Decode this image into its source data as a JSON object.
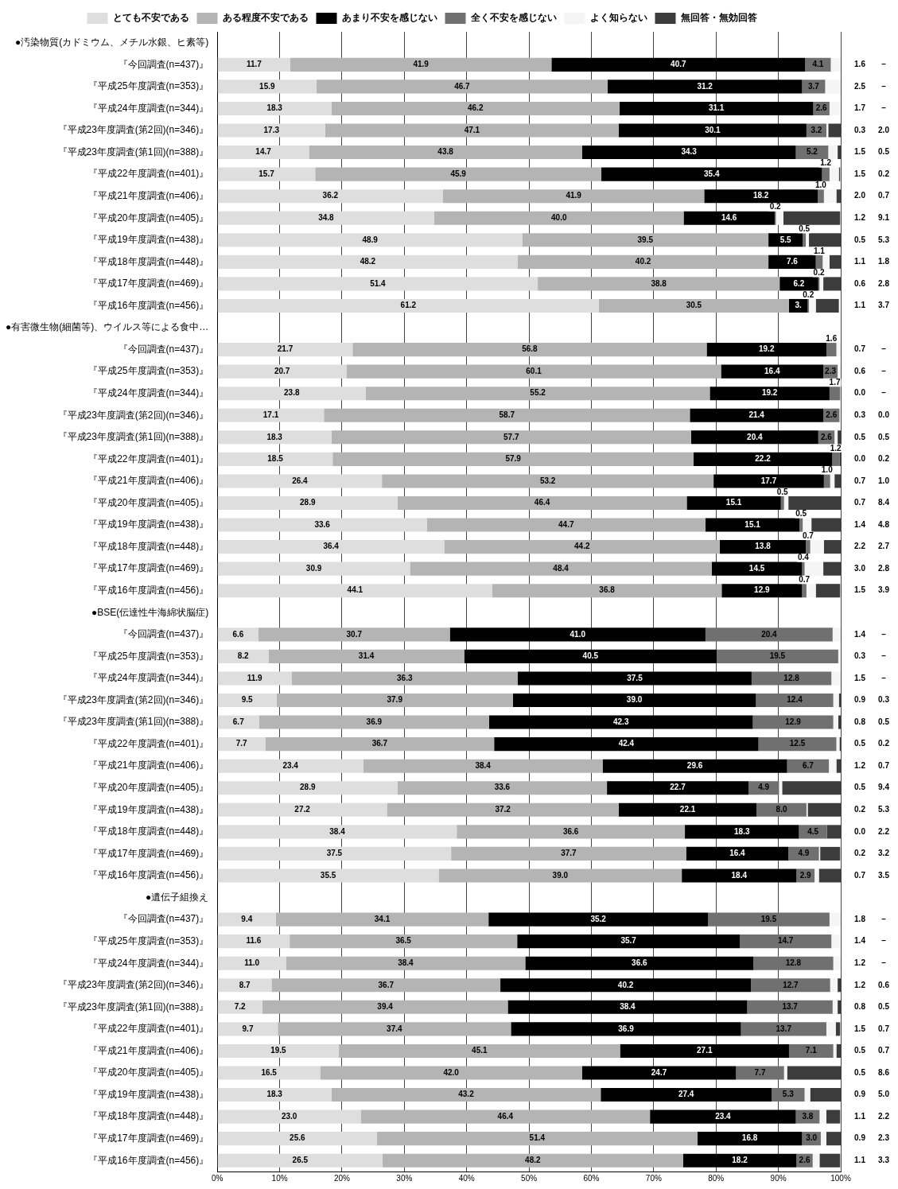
{
  "chart_data": {
    "type": "bar",
    "orientation": "horizontal",
    "stacked": true,
    "categories": [
      "●汚染物質(カドミウム、メチル水銀、ヒ素等)",
      "『今回調査(n=437)』",
      "『平成25年度調査(n=353)』",
      "『平成24年度調査(n=344)』",
      "『平成23年度調査(第2回)(n=346)』",
      "『平成23年度調査(第1回)(n=388)』",
      "『平成22年度調査(n=401)』",
      "『平成21年度調査(n=406)』",
      "『平成20年度調査(n=405)』",
      "『平成19年度調査(n=438)』",
      "『平成18年度調査(n=448)』",
      "『平成17年度調査(n=469)』",
      "『平成16年度調査(n=456)』",
      "●有害微生物(細菌等)、ウイルス等による食中…",
      "『今回調査(n=437)』",
      "『平成25年度調査(n=353)』",
      "『平成24年度調査(n=344)』",
      "『平成23年度調査(第2回)(n=346)』",
      "『平成23年度調査(第1回)(n=388)』",
      "『平成22年度調査(n=401)』",
      "『平成21年度調査(n=406)』",
      "『平成20年度調査(n=405)』",
      "『平成19年度調査(n=438)』",
      "『平成18年度調査(n=448)』",
      "『平成17年度調査(n=469)』",
      "『平成16年度調査(n=456)』",
      "●BSE(伝達性牛海綿状脳症)",
      "『今回調査(n=437)』",
      "『平成25年度調査(n=353)』",
      "『平成24年度調査(n=344)』",
      "『平成23年度調査(第2回)(n=346)』",
      "『平成23年度調査(第1回)(n=388)』",
      "『平成22年度調査(n=401)』",
      "『平成21年度調査(n=406)』",
      "『平成20年度調査(n=405)』",
      "『平成19年度調査(n=438)』",
      "『平成18年度調査(n=448)』",
      "『平成17年度調査(n=469)』",
      "『平成16年度調査(n=456)』",
      "●遺伝子組換え",
      "『今回調査(n=437)』",
      "『平成25年度調査(n=353)』",
      "『平成24年度調査(n=344)』",
      "『平成23年度調査(第2回)(n=346)』",
      "『平成23年度調査(第1回)(n=388)』",
      "『平成22年度調査(n=401)』",
      "『平成21年度調査(n=406)』",
      "『平成20年度調査(n=405)』",
      "『平成19年度調査(n=438)』",
      "『平成18年度調査(n=448)』",
      "『平成17年度調査(n=469)』",
      "『平成16年度調査(n=456)』"
    ],
    "series": [
      {
        "name": "とても不安である",
        "color": "#dedede",
        "values": [
          null,
          11.7,
          15.9,
          18.3,
          17.3,
          14.7,
          15.7,
          36.2,
          34.8,
          48.9,
          48.2,
          51.4,
          61.2,
          null,
          21.7,
          20.7,
          23.8,
          17.1,
          18.3,
          18.5,
          26.4,
          28.9,
          33.6,
          36.4,
          30.9,
          44.1,
          null,
          6.6,
          8.2,
          11.9,
          9.5,
          6.7,
          7.7,
          23.4,
          28.9,
          27.2,
          38.4,
          37.5,
          35.5,
          null,
          9.4,
          11.6,
          11.0,
          8.7,
          7.2,
          9.7,
          19.5,
          16.5,
          18.3,
          23.0,
          25.6,
          26.5
        ],
        "value_labels": [
          null,
          "11.7",
          "15.9",
          "18.3",
          "17.3",
          "14.7",
          "15.7",
          "36.2",
          "34.8",
          "48.9",
          "48.2",
          "51.4",
          "61.2",
          null,
          "21.7",
          "20.7",
          "23.8",
          "17.1",
          "18.3",
          "18.5",
          "26.4",
          "28.9",
          "33.6",
          "36.4",
          "30.9",
          "44.1",
          null,
          "6.6",
          "8.2",
          "11.9",
          "9.5",
          "6.7",
          "7.7",
          "23.4",
          "28.9",
          "27.2",
          "38.4",
          "37.5",
          "35.5",
          null,
          "9.4",
          "11.6",
          "11.0",
          "8.7",
          "7.2",
          "9.7",
          "19.5",
          "16.5",
          "18.3",
          "23.0",
          "25.6",
          "26.5"
        ]
      },
      {
        "name": "ある程度不安である",
        "color": "#b4b4b4",
        "values": [
          null,
          41.9,
          46.7,
          46.2,
          47.1,
          43.8,
          45.9,
          41.9,
          40.0,
          39.5,
          40.2,
          38.8,
          30.5,
          null,
          56.8,
          60.1,
          55.2,
          58.7,
          57.7,
          57.9,
          53.2,
          46.4,
          44.7,
          44.2,
          48.4,
          36.8,
          null,
          30.7,
          31.4,
          36.3,
          37.9,
          36.9,
          36.7,
          38.4,
          33.6,
          37.2,
          36.6,
          37.7,
          39.0,
          null,
          34.1,
          36.5,
          38.4,
          36.7,
          39.4,
          37.4,
          45.1,
          42.0,
          43.2,
          46.4,
          51.4,
          48.2
        ],
        "value_labels": [
          null,
          "41.9",
          "46.7",
          "46.2",
          "47.1",
          "43.8",
          "45.9",
          "41.9",
          "40.0",
          "39.5",
          "40.2",
          "38.8",
          "30.5",
          null,
          "56.8",
          "60.1",
          "55.2",
          "58.7",
          "57.7",
          "57.9",
          "53.2",
          "46.4",
          "44.7",
          "44.2",
          "48.4",
          "36.8",
          null,
          "30.7",
          "31.4",
          "36.3",
          "37.9",
          "36.9",
          "36.7",
          "38.4",
          "33.6",
          "37.2",
          "36.6",
          "37.7",
          "39.0",
          null,
          "34.1",
          "36.5",
          "38.4",
          "36.7",
          "39.4",
          "37.4",
          "45.1",
          "42.0",
          "43.2",
          "46.4",
          "51.4",
          "48.2"
        ]
      },
      {
        "name": "あまり不安を感じない",
        "color": "#000000",
        "values": [
          null,
          40.7,
          31.2,
          31.1,
          30.1,
          34.3,
          35.4,
          18.2,
          14.6,
          5.5,
          7.6,
          6.2,
          3.0,
          null,
          19.2,
          16.4,
          19.2,
          21.4,
          20.4,
          22.2,
          17.7,
          15.1,
          15.1,
          13.8,
          14.5,
          12.9,
          null,
          41.0,
          40.5,
          37.5,
          39.0,
          42.3,
          42.4,
          29.6,
          22.7,
          22.1,
          18.3,
          16.4,
          18.4,
          null,
          35.2,
          35.7,
          36.6,
          40.2,
          38.4,
          36.9,
          27.1,
          24.7,
          27.4,
          23.4,
          16.8,
          18.2
        ],
        "value_labels": [
          null,
          "40.7",
          "31.2",
          "31.1",
          "30.1",
          "34.3",
          "35.4",
          "18.2",
          "14.6",
          "5.5",
          "7.6",
          "6.2",
          "3.",
          null,
          "19.2",
          "16.4",
          "19.2",
          "21.4",
          "20.4",
          "22.2",
          "17.7",
          "15.1",
          "15.1",
          "13.8",
          "14.5",
          "12.9",
          null,
          "41.0",
          "40.5",
          "37.5",
          "39.0",
          "42.3",
          "42.4",
          "29.6",
          "22.7",
          "22.1",
          "18.3",
          "16.4",
          "18.4",
          null,
          "35.2",
          "35.7",
          "36.6",
          "40.2",
          "38.4",
          "36.9",
          "27.1",
          "24.7",
          "27.4",
          "23.4",
          "16.8",
          "18.2"
        ]
      },
      {
        "name": "全く不安を感じない",
        "color": "#707070",
        "values": [
          null,
          4.1,
          3.7,
          2.6,
          3.2,
          5.2,
          1.2,
          1.0,
          0.2,
          0.5,
          1.1,
          0.2,
          0.2,
          null,
          1.6,
          2.3,
          1.7,
          2.6,
          2.6,
          1.2,
          1.0,
          0.5,
          0.5,
          0.7,
          0.4,
          0.7,
          null,
          20.4,
          19.5,
          12.8,
          12.4,
          12.9,
          12.5,
          6.7,
          4.9,
          8.0,
          4.5,
          4.9,
          2.9,
          null,
          19.5,
          14.7,
          12.8,
          12.7,
          13.7,
          13.7,
          7.1,
          7.7,
          5.3,
          3.8,
          3.0,
          2.6
        ],
        "value_labels": [
          null,
          "4.1",
          "3.7",
          "2.6",
          "3.2",
          "5.2",
          "1.2",
          "1.0",
          "0.2",
          "0.5",
          "1.1",
          "0.2",
          "0.2",
          null,
          "1.6",
          "2.3",
          "1.7",
          "2.6",
          "2.6",
          "1.2",
          "1.0",
          "0.5",
          "0.5",
          "0.7",
          "0.4",
          "0.7",
          null,
          "20.4",
          "19.5",
          "12.8",
          "12.4",
          "12.9",
          "12.5",
          "6.7",
          "4.9",
          "8.0",
          "4.5",
          "4.9",
          "2.9",
          null,
          "19.5",
          "14.7",
          "12.8",
          "12.7",
          "13.7",
          "13.7",
          "7.1",
          "7.7",
          "5.3",
          "3.8",
          "3.0",
          "2.6"
        ]
      },
      {
        "name": "よく知らない",
        "color": "#f5f5f5",
        "values": [
          null,
          1.6,
          2.5,
          1.7,
          0.3,
          1.5,
          1.5,
          2.0,
          1.2,
          0.5,
          1.1,
          0.6,
          1.1,
          null,
          0.7,
          0.6,
          0.0,
          0.3,
          0.5,
          0.0,
          0.7,
          0.7,
          1.4,
          2.2,
          3.0,
          1.5,
          null,
          1.4,
          0.3,
          1.5,
          0.9,
          0.8,
          0.5,
          1.2,
          0.5,
          0.2,
          0.0,
          0.2,
          0.7,
          null,
          1.8,
          1.4,
          1.2,
          1.2,
          0.8,
          1.5,
          0.5,
          0.5,
          0.9,
          1.1,
          0.9,
          1.1
        ],
        "value_labels": [
          null,
          "1.6",
          "2.5",
          "1.7",
          "0.3",
          "1.5",
          "1.5",
          "2.0",
          "1.2",
          "0.5",
          "1.1",
          "0.6",
          "1.1",
          null,
          "0.7",
          "0.6",
          "0.0",
          "0.3",
          "0.5",
          "0.0",
          "0.7",
          "0.7",
          "1.4",
          "2.2",
          "3.0",
          "1.5",
          null,
          "1.4",
          "0.3",
          "1.5",
          "0.9",
          "0.8",
          "0.5",
          "1.2",
          "0.5",
          "0.2",
          "0.0",
          "0.2",
          "0.7",
          null,
          "1.8",
          "1.4",
          "1.2",
          "1.2",
          "0.8",
          "1.5",
          "0.5",
          "0.5",
          "0.9",
          "1.1",
          "0.9",
          "1.1"
        ]
      },
      {
        "name": "無回答・無効回答",
        "color": "#3c3c3c",
        "values": [
          null,
          null,
          null,
          null,
          2.0,
          0.5,
          0.2,
          0.7,
          9.1,
          5.3,
          1.8,
          2.8,
          3.7,
          null,
          null,
          null,
          null,
          0.0,
          0.5,
          0.2,
          1.0,
          8.4,
          4.8,
          2.7,
          2.8,
          3.9,
          null,
          null,
          null,
          null,
          0.3,
          0.5,
          0.2,
          0.7,
          9.4,
          5.3,
          2.2,
          3.2,
          3.5,
          null,
          null,
          null,
          null,
          0.6,
          0.5,
          0.7,
          0.7,
          8.6,
          5.0,
          2.2,
          2.3,
          3.3
        ],
        "value_labels": [
          null,
          "–",
          "–",
          "–",
          "2.0",
          "0.5",
          "0.2",
          "0.7",
          "9.1",
          "5.3",
          "1.8",
          "2.8",
          "3.7",
          null,
          "–",
          "–",
          "–",
          "0.0",
          "0.5",
          "0.2",
          "1.0",
          "8.4",
          "4.8",
          "2.7",
          "2.8",
          "3.9",
          null,
          "–",
          "–",
          "–",
          "0.3",
          "0.5",
          "0.2",
          "0.7",
          "9.4",
          "5.3",
          "2.2",
          "3.2",
          "3.5",
          null,
          "–",
          "–",
          "–",
          "0.6",
          "0.5",
          "0.7",
          "0.7",
          "8.6",
          "5.0",
          "2.2",
          "2.3",
          "3.3"
        ]
      }
    ],
    "xlim": [
      0,
      100
    ],
    "xticks": [
      {
        "value": 0,
        "label": "0%"
      },
      {
        "value": 10,
        "label": "10%"
      },
      {
        "value": 20,
        "label": "20%"
      },
      {
        "value": 30,
        "label": "30%"
      },
      {
        "value": 40,
        "label": "40%"
      },
      {
        "value": 50,
        "label": "50%"
      },
      {
        "value": 60,
        "label": "60%"
      },
      {
        "value": 70,
        "label": "70%"
      },
      {
        "value": 80,
        "label": "80%"
      },
      {
        "value": 90,
        "label": "90%"
      },
      {
        "value": 100,
        "label": "100%"
      }
    ],
    "grid": "x",
    "legend": "top"
  }
}
